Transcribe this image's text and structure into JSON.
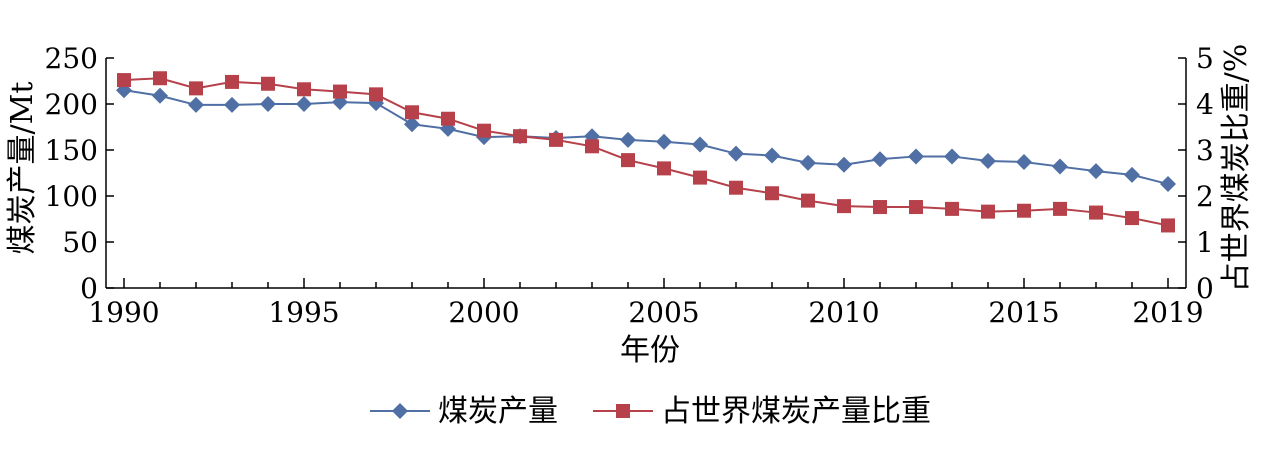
{
  "chart_data": {
    "type": "line",
    "x_label": "年份",
    "y_label_left": "煤炭产量/Mt",
    "y_label_right": "占世界煤炭比重/%",
    "x_ticks": [
      "1990",
      "1995",
      "2000",
      "2005",
      "2010",
      "2015",
      "2019"
    ],
    "y_ticks_left": [
      "0",
      "50",
      "100",
      "150",
      "200",
      "250"
    ],
    "y_ticks_right": [
      "0",
      "1",
      "2",
      "3",
      "4",
      "5"
    ],
    "xlim": [
      1990,
      2019
    ],
    "ylim_left": [
      0,
      250
    ],
    "ylim_right": [
      0,
      5
    ],
    "grid": false,
    "legend_position": "bottom",
    "x": [
      1990,
      1991,
      1992,
      1993,
      1994,
      1995,
      1996,
      1997,
      1998,
      1999,
      2000,
      2001,
      2002,
      2003,
      2004,
      2005,
      2006,
      2007,
      2008,
      2009,
      2010,
      2011,
      2012,
      2013,
      2014,
      2015,
      2016,
      2017,
      2018,
      2019
    ],
    "series": [
      {
        "name": "煤炭产量",
        "axis": "left",
        "color": "#4f6fa5",
        "marker": "diamond",
        "values": [
          215,
          209,
          199,
          199,
          200,
          200,
          202,
          201,
          178,
          173,
          164,
          165,
          163,
          165,
          161,
          159,
          156,
          146,
          144,
          136,
          134,
          140,
          143,
          143,
          138,
          137,
          132,
          127,
          123,
          113
        ]
      },
      {
        "name": "占世界煤炭产量比重",
        "axis": "right",
        "color": "#b6414a",
        "marker": "square",
        "values": [
          4.52,
          4.56,
          4.34,
          4.48,
          4.44,
          4.32,
          4.27,
          4.21,
          3.82,
          3.68,
          3.42,
          3.3,
          3.22,
          3.08,
          2.78,
          2.6,
          2.4,
          2.18,
          2.06,
          1.9,
          1.78,
          1.76,
          1.76,
          1.72,
          1.66,
          1.68,
          1.72,
          1.64,
          1.52,
          1.36
        ]
      }
    ]
  }
}
